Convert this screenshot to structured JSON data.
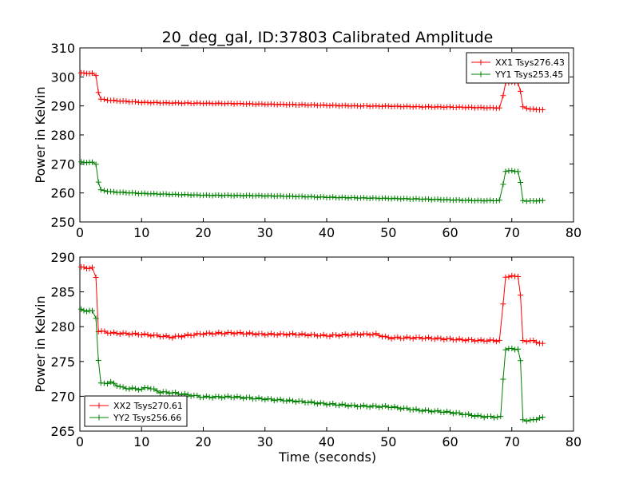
{
  "title": "20_deg_gal, ID:37803 Calibrated Amplitude",
  "colors": {
    "series_1": "#ff0000",
    "series_2": "#008000"
  },
  "chart_data": [
    {
      "type": "line",
      "title": "20_deg_gal, ID:37803 Calibrated Amplitude",
      "xlabel": "",
      "ylabel": "Power in Kelvin",
      "xlim": [
        0,
        80
      ],
      "ylim": [
        250,
        310
      ],
      "xticks": [
        "0",
        "10",
        "20",
        "30",
        "40",
        "50",
        "60",
        "70",
        "80"
      ],
      "yticks": [
        "250",
        "260",
        "270",
        "280",
        "290",
        "300",
        "310"
      ],
      "grid": false,
      "legend_position": "top-right",
      "marker": "+",
      "series": [
        {
          "name": "XX1 Tsys276.43",
          "color": "#ff0000",
          "points": [
            [
              0.2,
              301.3
            ],
            [
              2.0,
              301.2
            ],
            [
              2.6,
              300.5
            ],
            [
              3.0,
              294.8
            ],
            [
              3.4,
              292.3
            ],
            [
              5,
              291.9
            ],
            [
              10,
              291.2
            ],
            [
              15,
              291.0
            ],
            [
              20,
              290.9
            ],
            [
              25,
              290.8
            ],
            [
              30,
              290.6
            ],
            [
              35,
              290.4
            ],
            [
              40,
              290.2
            ],
            [
              45,
              290.0
            ],
            [
              50,
              289.9
            ],
            [
              55,
              289.7
            ],
            [
              60,
              289.6
            ],
            [
              65,
              289.4
            ],
            [
              68.0,
              289.3
            ],
            [
              68.6,
              293.5
            ],
            [
              69.0,
              298.0
            ],
            [
              70,
              298.1
            ],
            [
              71,
              298.0
            ],
            [
              71.4,
              295.0
            ],
            [
              71.8,
              289.6
            ],
            [
              73,
              288.9
            ],
            [
              75,
              288.7
            ]
          ]
        },
        {
          "name": "YY1 Tsys253.45",
          "color": "#008000",
          "points": [
            [
              0.2,
              270.6
            ],
            [
              2.0,
              270.5
            ],
            [
              2.6,
              270.0
            ],
            [
              3.0,
              263.8
            ],
            [
              3.4,
              261.0
            ],
            [
              5,
              260.4
            ],
            [
              10,
              259.8
            ],
            [
              15,
              259.5
            ],
            [
              20,
              259.2
            ],
            [
              25,
              259.1
            ],
            [
              30,
              259.0
            ],
            [
              35,
              258.8
            ],
            [
              40,
              258.5
            ],
            [
              45,
              258.3
            ],
            [
              50,
              258.1
            ],
            [
              55,
              257.9
            ],
            [
              60,
              257.6
            ],
            [
              65,
              257.3
            ],
            [
              68.0,
              257.4
            ],
            [
              68.6,
              263.0
            ],
            [
              69.0,
              267.5
            ],
            [
              70,
              267.6
            ],
            [
              71,
              267.4
            ],
            [
              71.4,
              263.5
            ],
            [
              71.8,
              257.3
            ],
            [
              73,
              257.2
            ],
            [
              75,
              257.4
            ]
          ]
        }
      ]
    },
    {
      "type": "line",
      "title": "",
      "xlabel": "Time (seconds)",
      "ylabel": "Power in Kelvin",
      "xlim": [
        0,
        80
      ],
      "ylim": [
        265,
        290
      ],
      "xticks": [
        "0",
        "10",
        "20",
        "30",
        "40",
        "50",
        "60",
        "70",
        "80"
      ],
      "yticks": [
        "265",
        "270",
        "275",
        "280",
        "285",
        "290"
      ],
      "grid": false,
      "legend_position": "bottom-left",
      "marker": "+",
      "series": [
        {
          "name": "XX2 Tsys270.61",
          "color": "#ff0000",
          "points": [
            [
              0.2,
              288.5
            ],
            [
              2.0,
              288.4
            ],
            [
              2.6,
              287.1
            ],
            [
              3.0,
              279.4
            ],
            [
              5,
              279.1
            ],
            [
              10,
              278.9
            ],
            [
              15,
              278.5
            ],
            [
              20,
              279.0
            ],
            [
              25,
              279.1
            ],
            [
              30,
              278.9
            ],
            [
              35,
              278.9
            ],
            [
              40,
              278.7
            ],
            [
              45,
              278.9
            ],
            [
              48,
              278.9
            ],
            [
              50,
              278.4
            ],
            [
              55,
              278.4
            ],
            [
              60,
              278.2
            ],
            [
              65,
              278.0
            ],
            [
              68.0,
              278.0
            ],
            [
              68.6,
              283.2
            ],
            [
              69.0,
              287.2
            ],
            [
              70,
              287.2
            ],
            [
              71,
              287.3
            ],
            [
              71.4,
              284.5
            ],
            [
              71.8,
              277.9
            ],
            [
              73,
              278.0
            ],
            [
              75,
              277.6
            ]
          ]
        },
        {
          "name": "YY2 Tsys256.66",
          "color": "#008000",
          "points": [
            [
              0.2,
              282.4
            ],
            [
              2.0,
              282.2
            ],
            [
              2.6,
              281.3
            ],
            [
              3.0,
              275.2
            ],
            [
              3.4,
              271.8
            ],
            [
              5,
              272.0
            ],
            [
              7,
              271.2
            ],
            [
              10,
              271.0
            ],
            [
              11,
              271.3
            ],
            [
              13,
              270.6
            ],
            [
              15,
              270.5
            ],
            [
              20,
              269.9
            ],
            [
              25,
              269.9
            ],
            [
              30,
              269.6
            ],
            [
              35,
              269.3
            ],
            [
              40,
              268.9
            ],
            [
              45,
              268.6
            ],
            [
              50,
              268.5
            ],
            [
              55,
              268.0
            ],
            [
              60,
              267.7
            ],
            [
              65,
              267.1
            ],
            [
              68.2,
              267.0
            ],
            [
              68.6,
              272.5
            ],
            [
              69.0,
              276.8
            ],
            [
              70,
              276.8
            ],
            [
              71,
              276.8
            ],
            [
              71.4,
              275.0
            ],
            [
              71.8,
              266.6
            ],
            [
              73,
              266.5
            ],
            [
              75,
              267.0
            ]
          ]
        }
      ]
    }
  ]
}
